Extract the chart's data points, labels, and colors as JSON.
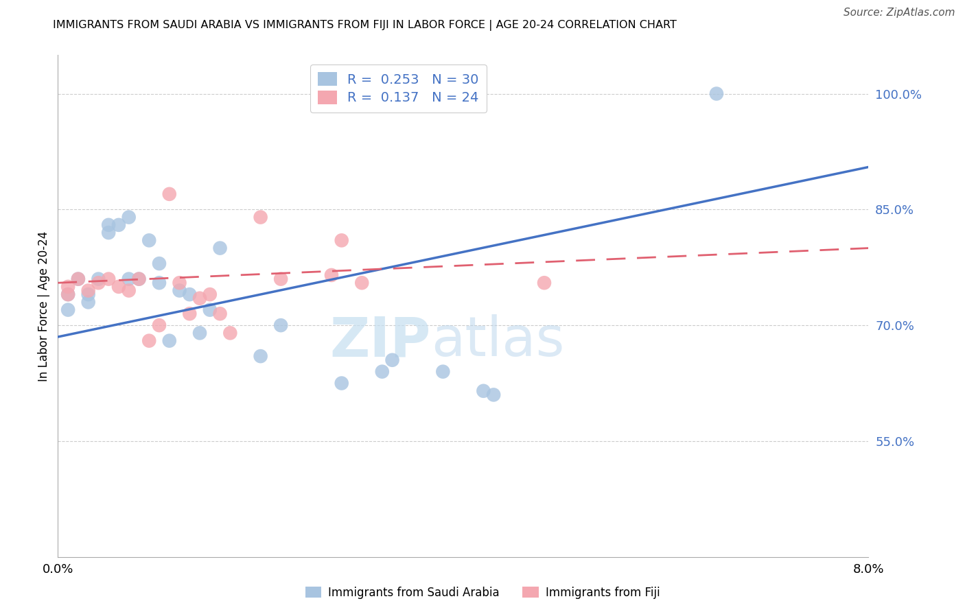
{
  "title": "IMMIGRANTS FROM SAUDI ARABIA VS IMMIGRANTS FROM FIJI IN LABOR FORCE | AGE 20-24 CORRELATION CHART",
  "source": "Source: ZipAtlas.com",
  "ylabel": "In Labor Force | Age 20-24",
  "xlim": [
    0.0,
    0.08
  ],
  "ylim": [
    0.4,
    1.05
  ],
  "xticks": [
    0.0,
    0.01,
    0.02,
    0.03,
    0.04,
    0.05,
    0.06,
    0.07,
    0.08
  ],
  "xticklabels": [
    "0.0%",
    "",
    "",
    "",
    "",
    "",
    "",
    "",
    "8.0%"
  ],
  "ytick_positions": [
    0.55,
    0.7,
    0.85,
    1.0
  ],
  "ytick_labels": [
    "55.0%",
    "70.0%",
    "85.0%",
    "100.0%"
  ],
  "blue_color": "#a8c4e0",
  "pink_color": "#f4a7b0",
  "blue_line_color": "#4472c4",
  "pink_line_color": "#e06070",
  "legend_blue_r": "0.253",
  "legend_blue_n": "30",
  "legend_pink_r": "0.137",
  "legend_pink_n": "24",
  "legend_label_blue": "Immigrants from Saudi Arabia",
  "legend_label_pink": "Immigrants from Fiji",
  "watermark_zip": "ZIP",
  "watermark_atlas": "atlas",
  "blue_trend_x0": 0.0,
  "blue_trend_y0": 0.685,
  "blue_trend_x1": 0.08,
  "blue_trend_y1": 0.905,
  "pink_trend_x0": 0.0,
  "pink_trend_y0": 0.755,
  "pink_trend_x1": 0.08,
  "pink_trend_y1": 0.8,
  "saudi_x": [
    0.001,
    0.001,
    0.002,
    0.003,
    0.003,
    0.004,
    0.005,
    0.005,
    0.006,
    0.007,
    0.007,
    0.008,
    0.009,
    0.01,
    0.01,
    0.011,
    0.012,
    0.013,
    0.014,
    0.015,
    0.016,
    0.02,
    0.022,
    0.028,
    0.032,
    0.033,
    0.038,
    0.042,
    0.043,
    0.065
  ],
  "saudi_y": [
    0.74,
    0.72,
    0.76,
    0.74,
    0.73,
    0.76,
    0.83,
    0.82,
    0.83,
    0.84,
    0.76,
    0.76,
    0.81,
    0.78,
    0.755,
    0.68,
    0.745,
    0.74,
    0.69,
    0.72,
    0.8,
    0.66,
    0.7,
    0.625,
    0.64,
    0.655,
    0.64,
    0.615,
    0.61,
    1.0
  ],
  "fiji_x": [
    0.001,
    0.001,
    0.002,
    0.003,
    0.004,
    0.005,
    0.006,
    0.007,
    0.008,
    0.009,
    0.01,
    0.011,
    0.012,
    0.013,
    0.014,
    0.015,
    0.016,
    0.017,
    0.02,
    0.022,
    0.027,
    0.028,
    0.03,
    0.048
  ],
  "fiji_y": [
    0.75,
    0.74,
    0.76,
    0.745,
    0.755,
    0.76,
    0.75,
    0.745,
    0.76,
    0.68,
    0.7,
    0.87,
    0.755,
    0.715,
    0.735,
    0.74,
    0.715,
    0.69,
    0.84,
    0.76,
    0.765,
    0.81,
    0.755,
    0.755
  ]
}
